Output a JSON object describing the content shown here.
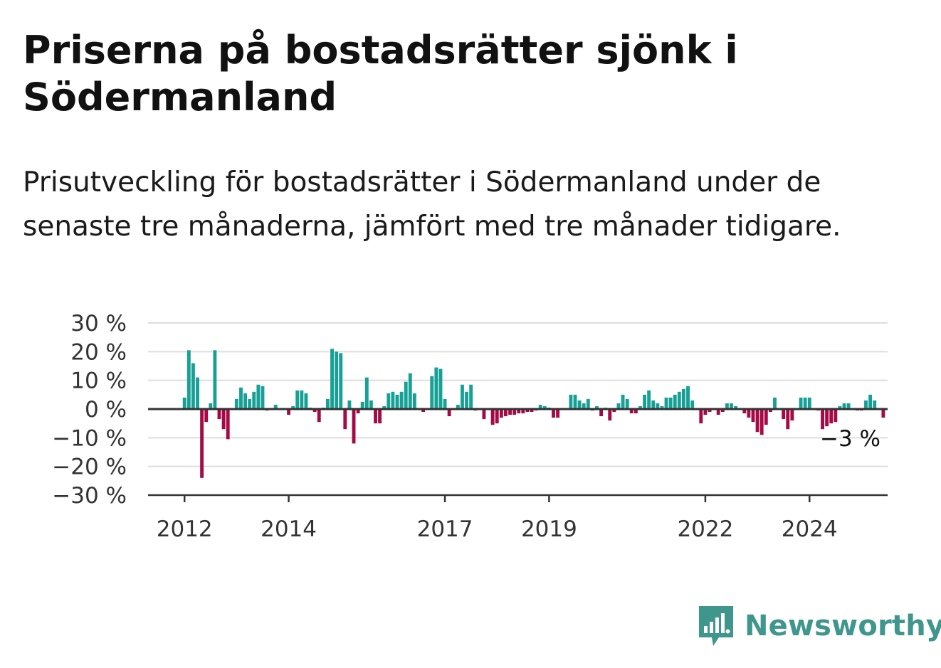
{
  "title": "Priserna på bostadsrätter sjönk i Södermanland",
  "subtitle": "Prisutveckling för bostadsrätter i Södermanland under de senaste tre månaderna, jämfört med tre månader tidigare.",
  "brand": {
    "name": "Newsworthy",
    "icon": "newsworthy-logo-icon"
  },
  "colors": {
    "positive": "#17a196",
    "negative": "#a50a46",
    "grid": "#dedede",
    "axis": "#333333",
    "brand": "#3f968c"
  },
  "chart_data": {
    "type": "bar",
    "xlabel": "",
    "ylabel": "",
    "ylim": [
      -30,
      30
    ],
    "y_ticks": [
      "30 %",
      "20 %",
      "10 %",
      "0 %",
      "−10 %",
      "−20 %",
      "−30 %"
    ],
    "y_tick_values": [
      30,
      20,
      10,
      0,
      -10,
      -20,
      -30
    ],
    "x_ticks": [
      "2012",
      "2014",
      "2017",
      "2019",
      "2022",
      "2024"
    ],
    "x_tick_values": [
      2012.0,
      2014.0,
      2017.0,
      2019.0,
      2022.0,
      2024.0
    ],
    "x_range": [
      2011.3,
      2025.5
    ],
    "end_label": "−3 %",
    "series": [
      {
        "start": "2012-01",
        "values": [
          4,
          20.5,
          16,
          11,
          -24,
          -4.5,
          2,
          20.5,
          -3.5,
          -7,
          -10.5,
          0,
          3.5,
          7.5,
          5.5,
          3.5,
          6,
          8.5,
          8,
          -0.5,
          0,
          1.5,
          0,
          0,
          -2,
          1,
          6.5,
          6.5,
          5.5,
          0.5,
          -1,
          -4.5,
          0.5,
          3.5,
          21,
          20,
          19.5,
          -7,
          3,
          -12,
          -1.5,
          2.5,
          11,
          3,
          -5,
          -5,
          1,
          5.5,
          6,
          5,
          6,
          9.5,
          12.5,
          5.5,
          0,
          -1,
          0,
          11.5,
          14.5,
          14,
          3.5,
          -2.5,
          0,
          1.5,
          8.5,
          6,
          8.5,
          -0.5,
          0,
          -3.5,
          0,
          -5.5,
          -5,
          -3,
          -2.5,
          -2,
          -2,
          -1.5,
          -1.5,
          -1,
          -1,
          -0.5,
          1.5,
          1,
          0.5,
          -3,
          -3,
          0,
          0,
          5,
          5,
          3,
          2,
          3.5,
          -0.5,
          1,
          -2.5,
          0.5,
          -4,
          -1,
          2,
          5,
          3.5,
          -1.5,
          -1.5,
          1,
          5,
          6.5,
          3,
          2,
          1,
          4,
          4,
          5,
          6,
          7,
          8,
          3,
          0,
          -5,
          -2,
          -1,
          0,
          -2,
          -1,
          2,
          2,
          1,
          0,
          -1.5,
          -3,
          -4.5,
          -8,
          -9,
          -5.5,
          -1,
          4,
          0,
          -3.5,
          -7,
          -4,
          0,
          4,
          4,
          4,
          0,
          -0.5,
          -7,
          -6,
          -5,
          -4.5,
          1,
          2,
          2,
          0,
          -0.5,
          -0.5,
          3,
          5,
          3,
          0,
          -3
        ]
      }
    ]
  }
}
